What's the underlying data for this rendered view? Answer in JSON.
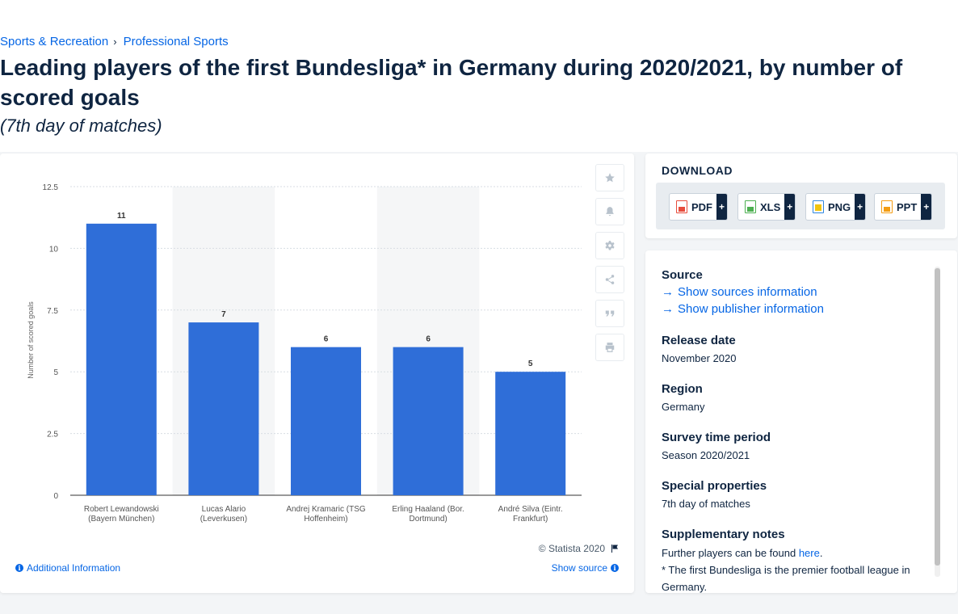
{
  "breadcrumb": {
    "items": [
      "Sports & Recreation",
      "Professional Sports"
    ],
    "separator": "›"
  },
  "page_title": "Leading players of the first Bundesliga* in Germany during 2020/2021, by number of scored goals",
  "page_subtitle": "(7th day of matches)",
  "chart": {
    "copyright": "© Statista 2020",
    "additional_info": "Additional Information",
    "show_source": "Show source"
  },
  "chart_data": {
    "type": "bar",
    "title": "",
    "xlabel": "",
    "ylabel": "Number of scored goals",
    "categories": [
      [
        "Robert Lewandowski",
        "(Bayern München)"
      ],
      [
        "Lucas Alario",
        "(Leverkusen)"
      ],
      [
        "Andrej Kramaric (TSG",
        "Hoffenheim)"
      ],
      [
        "Erling Haaland (Bor.",
        "Dortmund)"
      ],
      [
        "André Silva (Eintr.",
        "Frankfurt)"
      ]
    ],
    "values": [
      11,
      7,
      6,
      6,
      5
    ],
    "data_labels": [
      "11",
      "7",
      "6",
      "6",
      "5"
    ],
    "yticks": [
      0,
      2.5,
      5,
      7.5,
      10,
      12.5
    ],
    "ytick_labels": [
      "0",
      "2.5",
      "5",
      "7.5",
      "10",
      "12.5"
    ],
    "ylim": [
      0,
      12.5
    ],
    "grid": true,
    "bar_color": "#2f6ed8",
    "alt_band_color": "#f5f6f7"
  },
  "download": {
    "title": "DOWNLOAD",
    "buttons": [
      {
        "label": "PDF",
        "icon": "pdf-file-icon",
        "color": "#e74c3c"
      },
      {
        "label": "XLS",
        "icon": "xls-file-icon",
        "color": "#4caf50"
      },
      {
        "label": "PNG",
        "icon": "png-file-icon",
        "color": "#2e86de"
      },
      {
        "label": "PPT",
        "icon": "ppt-file-icon",
        "color": "#f39c12"
      }
    ],
    "plus": "+"
  },
  "info": {
    "source_label": "Source",
    "show_sources": "Show sources information",
    "show_publisher": "Show publisher information",
    "release_date_label": "Release date",
    "release_date": "November 2020",
    "region_label": "Region",
    "region": "Germany",
    "survey_period_label": "Survey time period",
    "survey_period": "Season 2020/2021",
    "special_label": "Special properties",
    "special": "7th day of matches",
    "supp_label": "Supplementary notes",
    "supp_prefix": "Further players can be found ",
    "supp_link": "here",
    "supp_suffix": ".",
    "supp_note2": "* The first Bundesliga is the premier football league in Germany."
  }
}
